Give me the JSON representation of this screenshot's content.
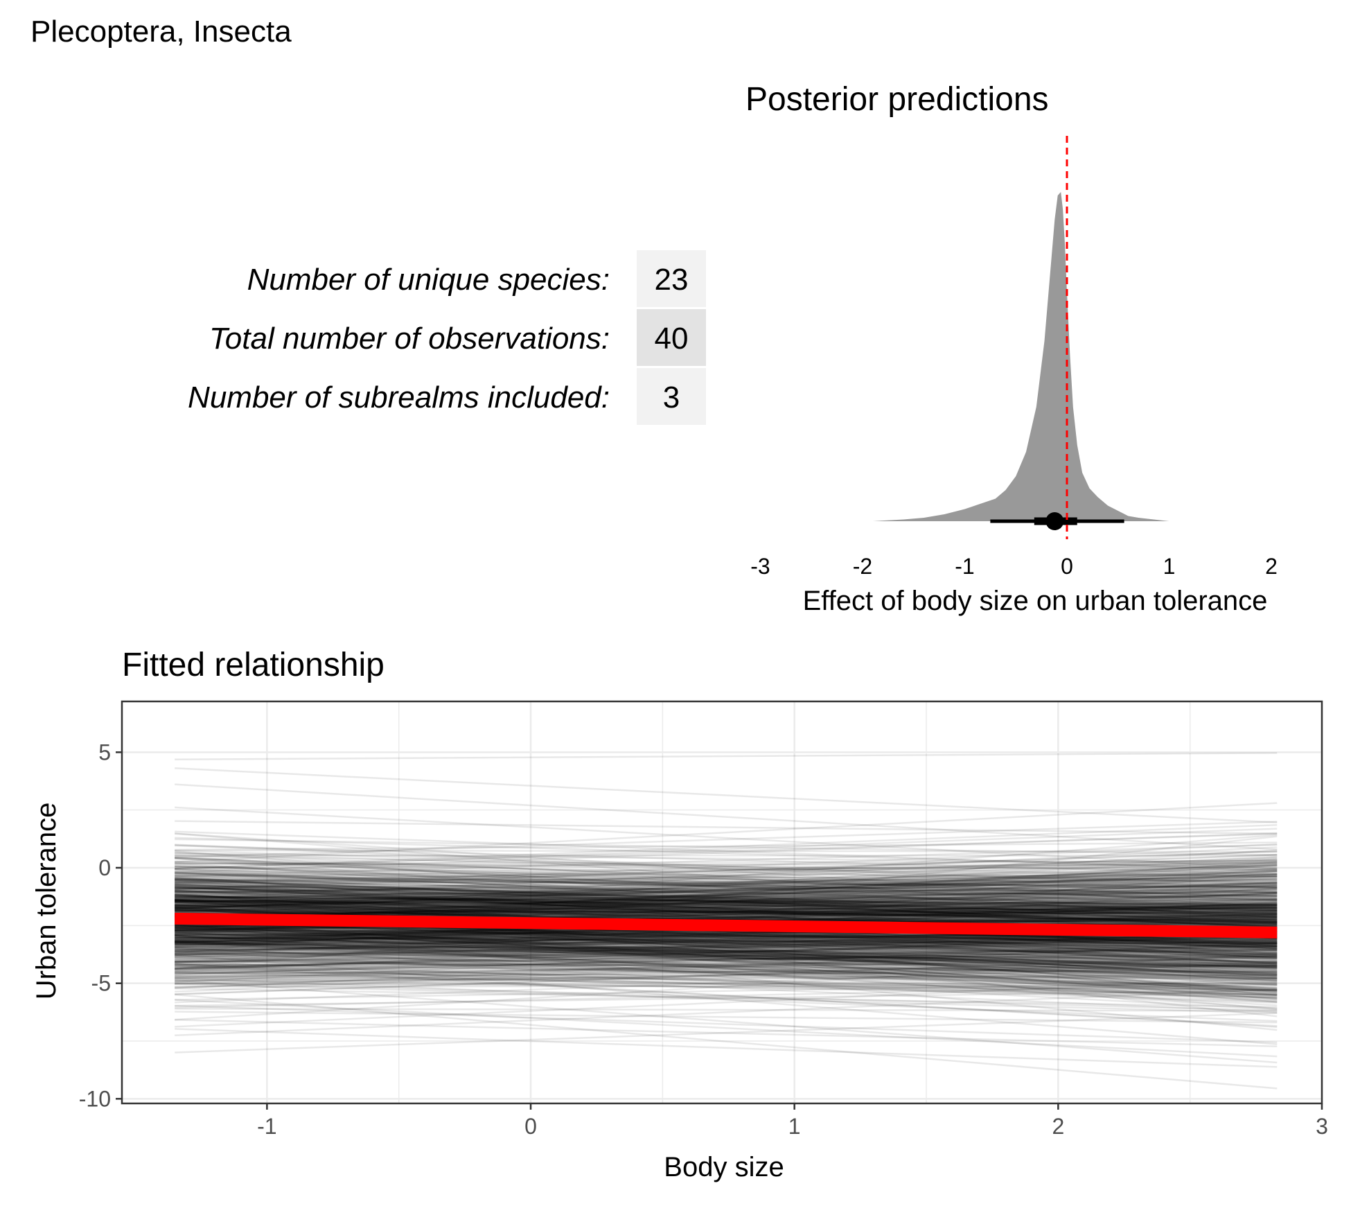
{
  "figure_title": "Plecoptera, Insecta",
  "summary_table": {
    "rows": [
      {
        "label": "Number of unique species:",
        "value": "23"
      },
      {
        "label": "Total number of observations:",
        "value": "40"
      },
      {
        "label": "Number of subrealms included:",
        "value": "3"
      }
    ]
  },
  "colors": {
    "density_fill": "#999999",
    "reference_line": "#ff0000",
    "mean_line": "#ff0000",
    "draw_line": "#000000",
    "panel_border": "#333333",
    "grid": "#ebebeb",
    "table_fill_light": "#f2f2f2",
    "table_fill_dark": "#e3e3e3"
  },
  "chart_data": [
    {
      "type": "area",
      "title": "Posterior predictions",
      "xlabel": "Effect of body size on urban tolerance",
      "ylabel": "",
      "xlim": [
        -3,
        2
      ],
      "xticks": [
        -3,
        -2,
        -1,
        0,
        1,
        2
      ],
      "xtick_labels": [
        "-3",
        "-2",
        "-1",
        "0",
        "1",
        "2"
      ],
      "grid": false,
      "axes_visible": false,
      "density": {
        "x": [
          -1.9,
          -1.6,
          -1.4,
          -1.2,
          -1.0,
          -0.85,
          -0.7,
          -0.6,
          -0.5,
          -0.4,
          -0.3,
          -0.22,
          -0.16,
          -0.12,
          -0.09,
          -0.06,
          -0.04,
          -0.02,
          0.0,
          0.03,
          0.06,
          0.1,
          0.15,
          0.22,
          0.3,
          0.4,
          0.5,
          0.6,
          0.7,
          0.85,
          1.0,
          1.2,
          1.45
        ],
        "y": [
          0.0,
          0.005,
          0.01,
          0.02,
          0.035,
          0.05,
          0.065,
          0.09,
          0.13,
          0.2,
          0.33,
          0.52,
          0.73,
          0.87,
          0.94,
          0.95,
          0.9,
          0.8,
          0.66,
          0.48,
          0.33,
          0.22,
          0.14,
          0.095,
          0.07,
          0.045,
          0.03,
          0.015,
          0.01,
          0.005,
          0.0,
          0.0,
          0.0
        ]
      },
      "point_estimate": -0.12,
      "interval_inner": [
        -0.32,
        0.1
      ],
      "interval_outer": [
        -0.75,
        0.56
      ],
      "reference_line_x": 0
    },
    {
      "type": "line",
      "title": "Fitted relationship",
      "xlabel": "Body size",
      "ylabel": "Urban tolerance",
      "xlim": [
        -1.55,
        3.0
      ],
      "ylim": [
        -10.2,
        7.2
      ],
      "xticks": [
        -1,
        0,
        1,
        2,
        3
      ],
      "xtick_labels": [
        "-1",
        "0",
        "1",
        "2",
        "3"
      ],
      "yticks": [
        -10,
        -5,
        0,
        5
      ],
      "ytick_labels": [
        "-10",
        "-5",
        "0",
        "5"
      ],
      "grid": true,
      "x_range_lines": [
        -1.35,
        2.83
      ],
      "posterior_draws_line": {
        "intercept_center": -2.45,
        "slope_center": -0.12
      },
      "mean_line": {
        "x": [
          -1.35,
          2.83
        ],
        "y": [
          -2.2,
          -2.8
        ]
      }
    }
  ]
}
